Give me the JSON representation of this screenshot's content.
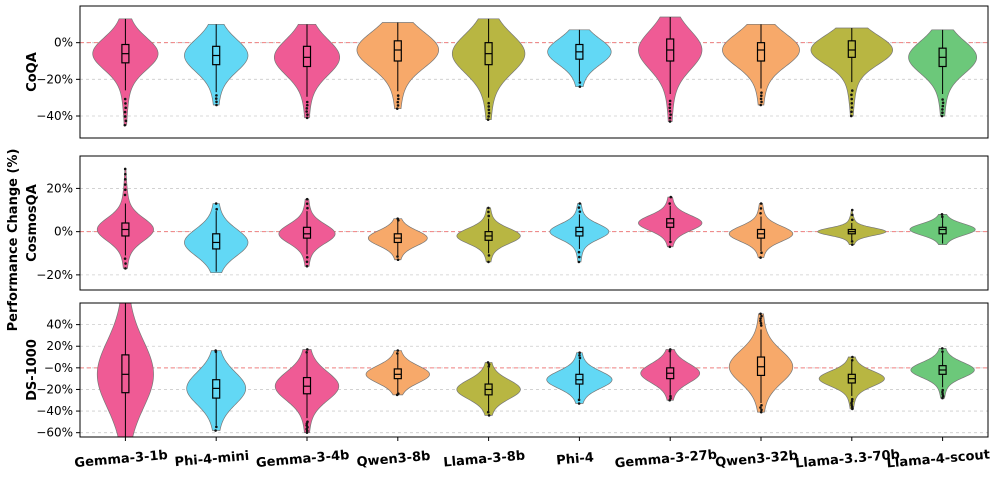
{
  "chart_data": {
    "type": "violin",
    "ylabel": "Performance Change (%)",
    "categories": [
      "Gemma-3-1b",
      "Phi-4-mini",
      "Gemma-3-4b",
      "Qwen3-8b",
      "Llama-3-8b",
      "Phi-4",
      "Gemma-3-27b",
      "Qwen3-32b",
      "Llama-3.3-70b",
      "Llama-4-scout"
    ],
    "colors": [
      "#ef5b95",
      "#62d8f5",
      "#ef5b95",
      "#f7a96a",
      "#b8b642",
      "#62d8f5",
      "#ef5b95",
      "#f7a96a",
      "#b8b642",
      "#6cc87a"
    ],
    "panels": [
      {
        "name": "CoQA",
        "ylim": [
          -52,
          20
        ],
        "ticks": [
          0,
          -20,
          -40
        ],
        "tick_labels": [
          "0%",
          "−20%",
          "−40%"
        ],
        "violins": [
          {
            "min": -45,
            "max": 13,
            "q1": -11,
            "median": -6,
            "q3": -1,
            "width": 0.72
          },
          {
            "min": -34,
            "max": 10,
            "q1": -12,
            "median": -7,
            "q3": -2,
            "width": 0.7
          },
          {
            "min": -41,
            "max": 10,
            "q1": -13,
            "median": -8,
            "q3": -2,
            "width": 0.72
          },
          {
            "min": -36,
            "max": 11,
            "q1": -10,
            "median": -4,
            "q3": 1,
            "width": 0.9
          },
          {
            "min": -42,
            "max": 13,
            "q1": -12,
            "median": -6,
            "q3": 0,
            "width": 0.8
          },
          {
            "min": -24,
            "max": 7,
            "q1": -9,
            "median": -5,
            "q3": -1,
            "width": 0.7
          },
          {
            "min": -43,
            "max": 14,
            "q1": -10,
            "median": -4,
            "q3": 2,
            "width": 0.7
          },
          {
            "min": -34,
            "max": 10,
            "q1": -10,
            "median": -4,
            "q3": 0,
            "width": 0.85
          },
          {
            "min": -40,
            "max": 8,
            "q1": -8,
            "median": -4,
            "q3": 1,
            "width": 0.9
          },
          {
            "min": -40,
            "max": 7,
            "q1": -13,
            "median": -8,
            "q3": -3,
            "width": 0.75
          }
        ]
      },
      {
        "name": "CosmosQA",
        "ylim": [
          -27,
          35
        ],
        "ticks": [
          20,
          0,
          -20
        ],
        "tick_labels": [
          "20%",
          "0%",
          "−20%"
        ],
        "violins": [
          {
            "min": -17,
            "max": 29,
            "q1": -2,
            "median": 1,
            "q3": 4,
            "width": 0.62
          },
          {
            "min": -19,
            "max": 13,
            "q1": -8,
            "median": -5,
            "q3": -1,
            "width": 0.7
          },
          {
            "min": -16,
            "max": 15,
            "q1": -3,
            "median": -1,
            "q3": 2,
            "width": 0.62
          },
          {
            "min": -13,
            "max": 6,
            "q1": -5,
            "median": -3,
            "q3": -1,
            "width": 0.65
          },
          {
            "min": -14,
            "max": 11,
            "q1": -4,
            "median": -2,
            "q3": 0,
            "width": 0.7
          },
          {
            "min": -14,
            "max": 13,
            "q1": -2,
            "median": 0,
            "q3": 2,
            "width": 0.65
          },
          {
            "min": -7,
            "max": 16,
            "q1": 2,
            "median": 4,
            "q3": 6,
            "width": 0.7
          },
          {
            "min": -12,
            "max": 13,
            "q1": -3,
            "median": -1,
            "q3": 1,
            "width": 0.7
          },
          {
            "min": -6,
            "max": 10,
            "q1": -1,
            "median": 0,
            "q3": 1,
            "width": 0.75
          },
          {
            "min": -6,
            "max": 8,
            "q1": -1,
            "median": 1,
            "q3": 2,
            "width": 0.72
          }
        ]
      },
      {
        "name": "DS-1000",
        "ylim": [
          -64,
          60
        ],
        "ticks": [
          40,
          20,
          0,
          -20,
          -40,
          -60
        ],
        "tick_labels": [
          "40%",
          "20%",
          "−0%",
          "−20%",
          "−40%",
          "−60%"
        ],
        "violins": [
          {
            "min": -64,
            "max": 60,
            "q1": -23,
            "median": -6,
            "q3": 12,
            "width": 0.62
          },
          {
            "min": -58,
            "max": 16,
            "q1": -28,
            "median": -19,
            "q3": -11,
            "width": 0.65
          },
          {
            "min": -60,
            "max": 17,
            "q1": -24,
            "median": -17,
            "q3": -9,
            "width": 0.7
          },
          {
            "min": -25,
            "max": 16,
            "q1": -10,
            "median": -6,
            "q3": -1,
            "width": 0.7
          },
          {
            "min": -44,
            "max": 5,
            "q1": -25,
            "median": -20,
            "q3": -15,
            "width": 0.7
          },
          {
            "min": -33,
            "max": 14,
            "q1": -15,
            "median": -11,
            "q3": -6,
            "width": 0.72
          },
          {
            "min": -30,
            "max": 17,
            "q1": -10,
            "median": -5,
            "q3": 0,
            "width": 0.65
          },
          {
            "min": -41,
            "max": 50,
            "q1": -7,
            "median": 1,
            "q3": 10,
            "width": 0.7
          },
          {
            "min": -38,
            "max": 10,
            "q1": -14,
            "median": -10,
            "q3": -6,
            "width": 0.72
          },
          {
            "min": -28,
            "max": 18,
            "q1": -6,
            "median": -2,
            "q3": 2,
            "width": 0.7
          }
        ]
      }
    ]
  }
}
